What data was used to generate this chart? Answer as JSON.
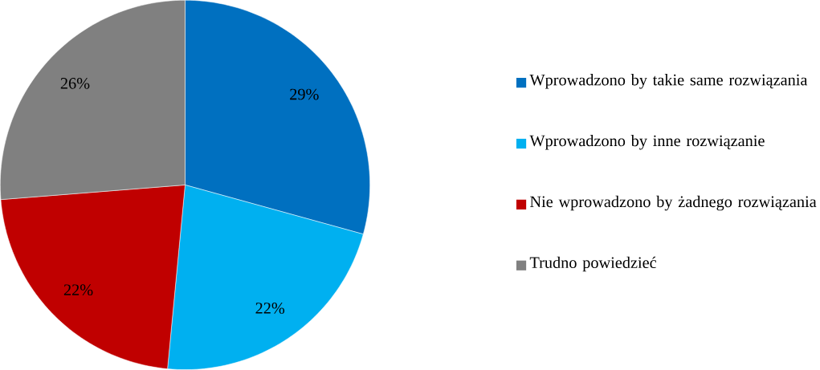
{
  "chart_data": {
    "type": "pie",
    "categories": [
      "Wprowadzono by takie same rozwiązania",
      "Wprowadzono by inne rozwiązanie",
      "Nie wprowadzono by żadnego rozwiązania",
      "Trudno powiedzieć"
    ],
    "values": [
      29,
      22,
      22,
      26
    ],
    "value_labels": [
      "29%",
      "22%",
      "22%",
      "26%"
    ],
    "colors": [
      "#0070c0",
      "#00b0f0",
      "#c00000",
      "#808080"
    ],
    "legend": "right"
  }
}
